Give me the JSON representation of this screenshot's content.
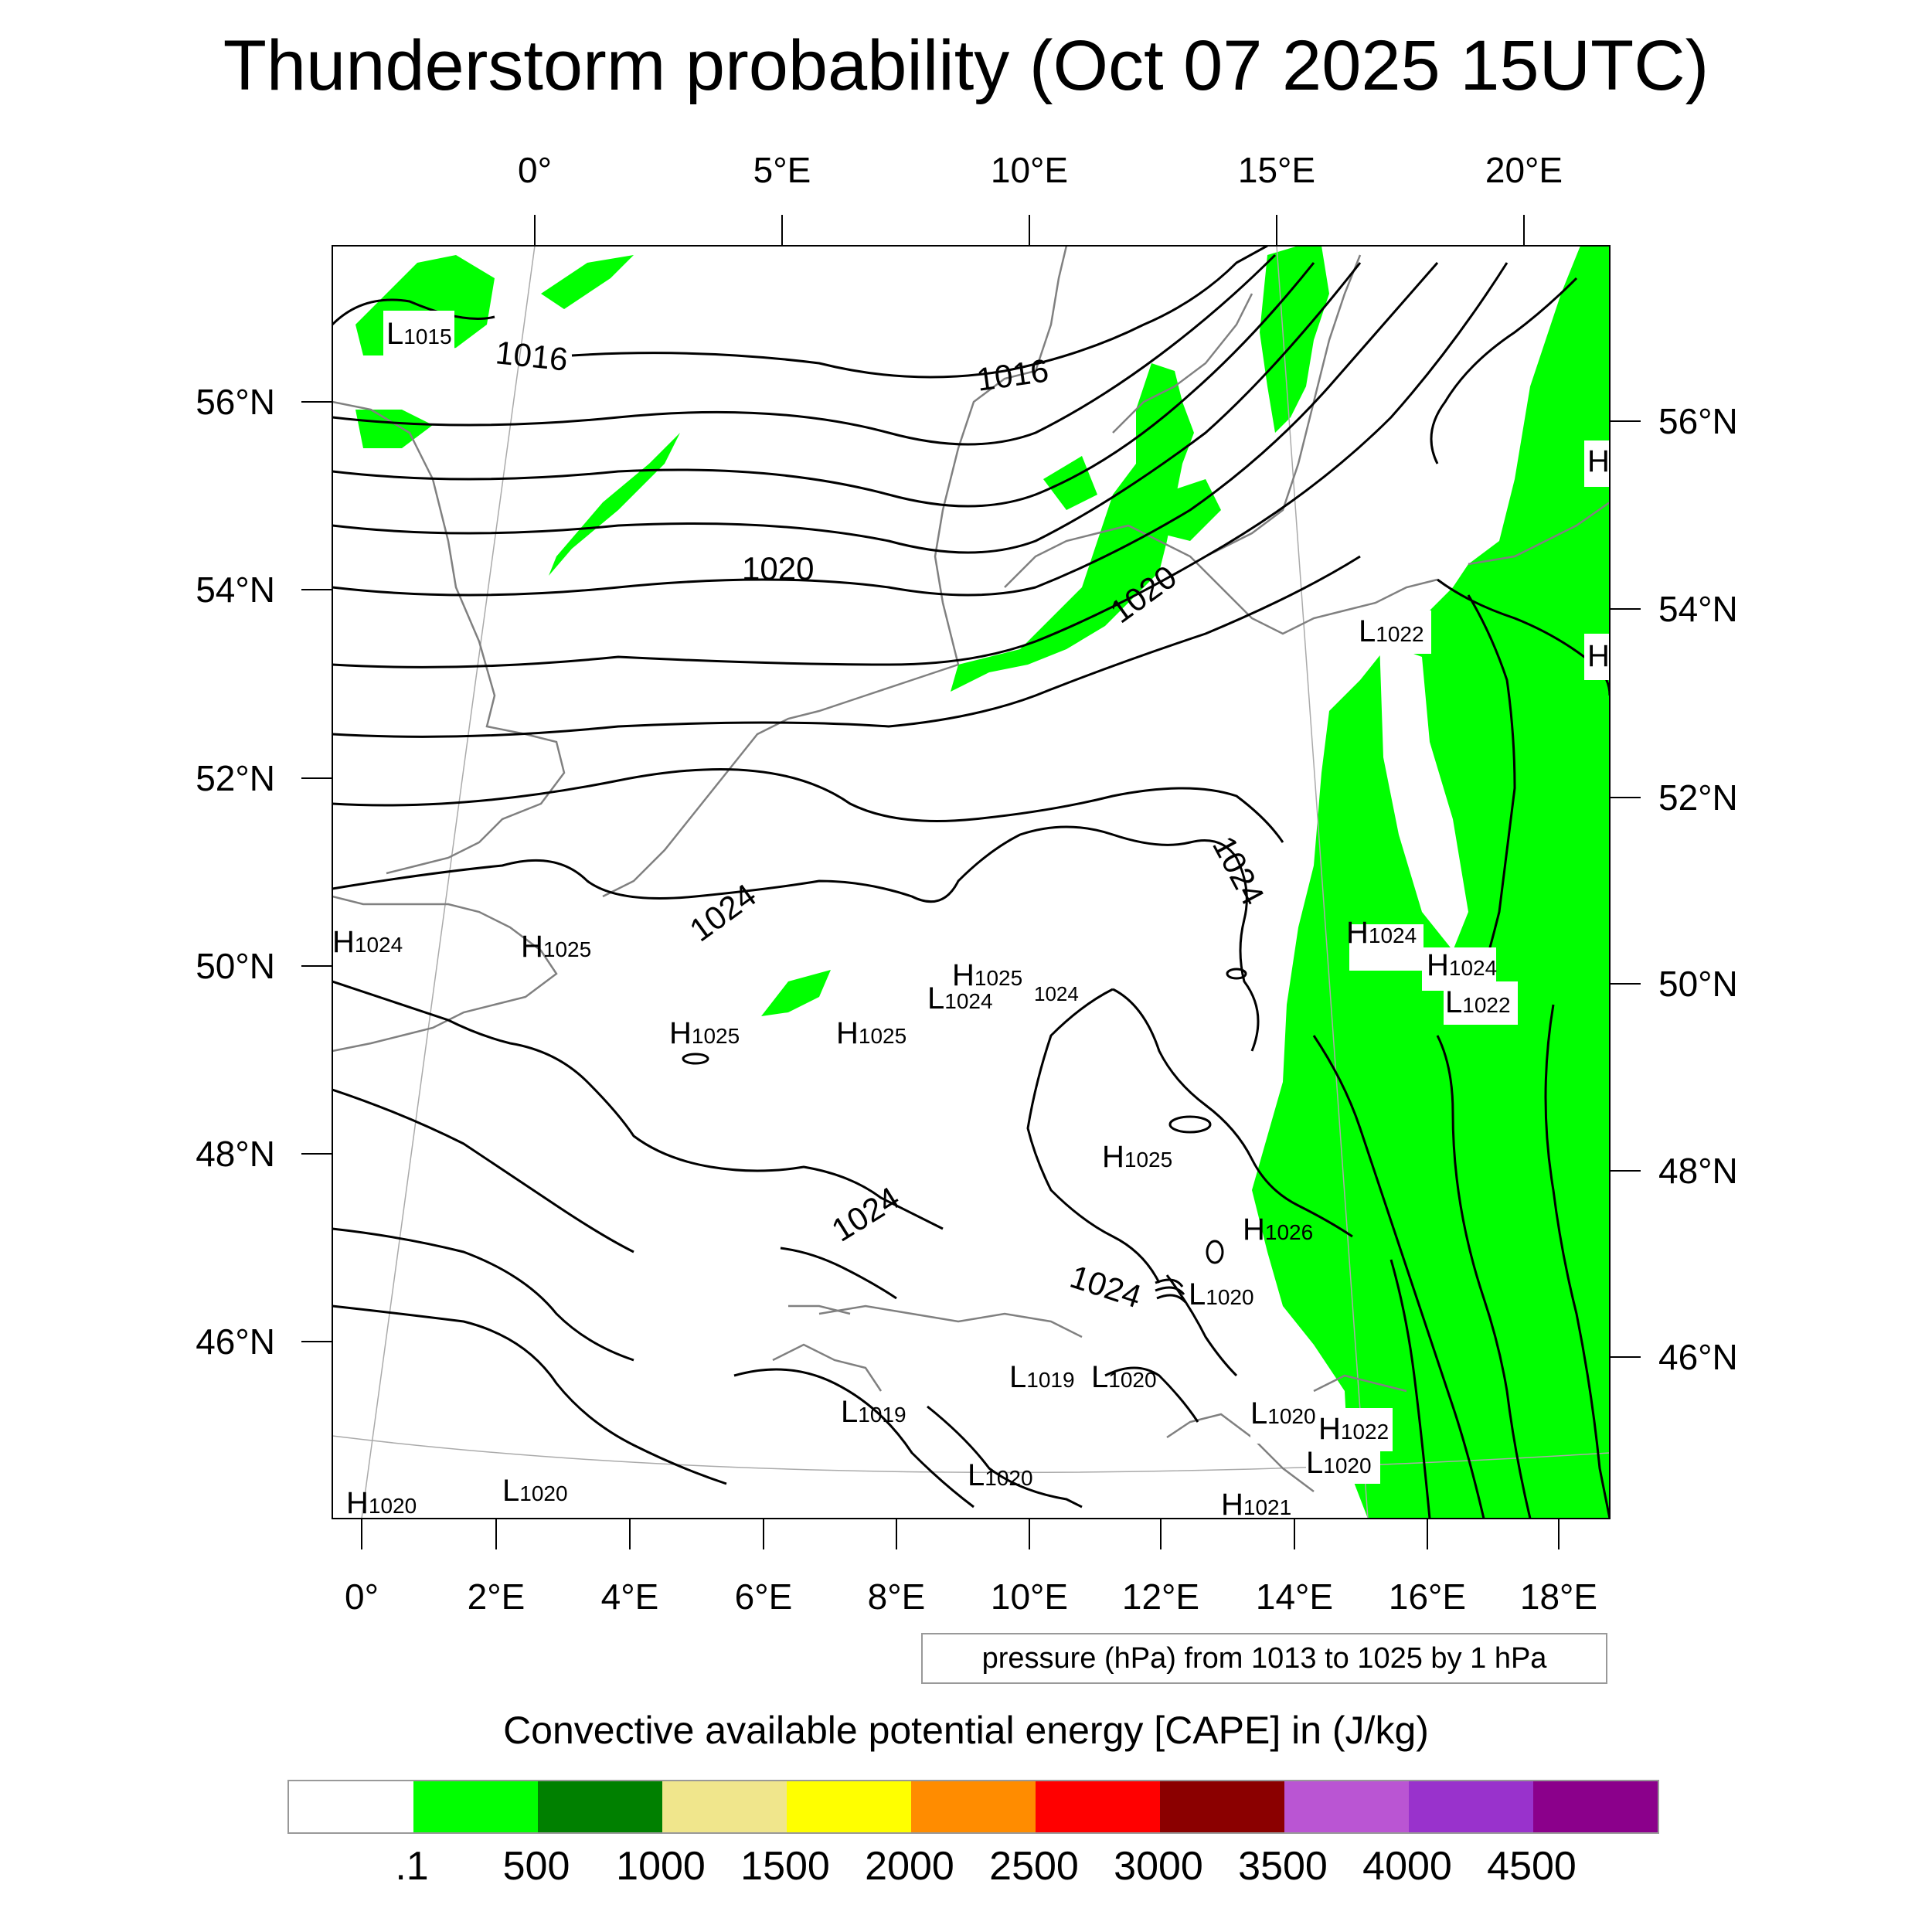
{
  "title": "Thunderstorm probability (Oct 07 2025 15UTC)",
  "top_lon_labels": [
    "0°",
    "5°E",
    "10°E",
    "15°E",
    "20°E"
  ],
  "bottom_lon_labels": [
    "0°",
    "2°E",
    "4°E",
    "6°E",
    "8°E",
    "10°E",
    "12°E",
    "14°E",
    "16°E",
    "18°E"
  ],
  "left_lat_labels": [
    "56°N",
    "54°N",
    "52°N",
    "50°N",
    "48°N",
    "46°N"
  ],
  "right_lat_labels": [
    "56°N",
    "54°N",
    "52°N",
    "50°N",
    "48°N",
    "46°N"
  ],
  "contour_info": "pressure (hPa) from 1013 to 1025 by 1 hPa",
  "colorbar": {
    "title": "Convective available potential energy [CAPE] in (J/kg)",
    "colors": [
      "#ffffff",
      "#00ff00",
      "#008000",
      "#f0e68c",
      "#ffff00",
      "#ff8c00",
      "#ff0000",
      "#8b0000",
      "#ba55d3",
      "#9932cc",
      "#8b008b"
    ],
    "labels": [
      ".1",
      "500",
      "1000",
      "1500",
      "2000",
      "2500",
      "3000",
      "3500",
      "4000",
      "4500"
    ]
  },
  "isobar_labels": [
    "1016",
    "1016",
    "1020",
    "1020",
    "1024",
    "1024",
    "1024",
    "1024"
  ],
  "pressure_centers": [
    {
      "type": "L",
      "value": "1015"
    },
    {
      "type": "H",
      "value": "1024"
    },
    {
      "type": "H",
      "value": "1025"
    },
    {
      "type": "H",
      "value": "1025"
    },
    {
      "type": "H",
      "value": "1025"
    },
    {
      "type": "H",
      "value": "1025"
    },
    {
      "type": "L",
      "value": "1024"
    },
    {
      "type": "H",
      "value": "1025"
    },
    {
      "type": "H",
      "value": "1026"
    },
    {
      "type": "L",
      "value": "1020"
    },
    {
      "type": "L",
      "value": "1019"
    },
    {
      "type": "L",
      "value": "1020"
    },
    {
      "type": "L",
      "value": "1019"
    },
    {
      "type": "L",
      "value": "1020"
    },
    {
      "type": "L",
      "value": "1020"
    },
    {
      "type": "H",
      "value": "1020"
    },
    {
      "type": "H",
      "value": "1021"
    },
    {
      "type": "L",
      "value": "1020"
    },
    {
      "type": "H",
      "value": "1022"
    },
    {
      "type": "L",
      "value": "1020"
    },
    {
      "type": "L",
      "value": "1022"
    },
    {
      "type": "H",
      "value": "1024"
    },
    {
      "type": "H",
      "value": "1024"
    },
    {
      "type": "L",
      "value": "1022"
    }
  ],
  "edge_labels": [
    "H",
    "H"
  ],
  "small_label": "1024"
}
